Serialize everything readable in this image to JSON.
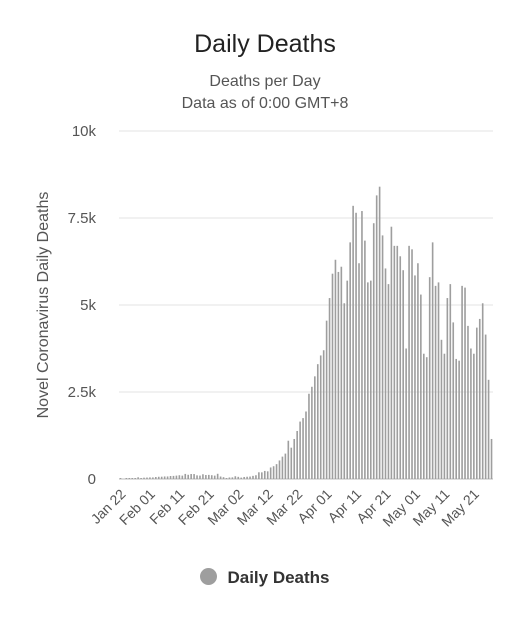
{
  "chart_data": {
    "type": "bar",
    "title": "Daily Deaths",
    "subtitle": [
      "Deaths per Day",
      "Data as of 0:00 GMT+8"
    ],
    "ylabel": "Novel Coronavirus Daily Deaths",
    "xlabel": "",
    "ylim": [
      0,
      10000
    ],
    "yticks": [
      0,
      2500,
      5000,
      7500,
      10000
    ],
    "ytick_labels": [
      "0",
      "2.5k",
      "5k",
      "7.5k",
      "10k"
    ],
    "xtick_labels": [
      "Jan 22",
      "Feb 01",
      "Feb 11",
      "Feb 21",
      "Mar 02",
      "Mar 12",
      "Mar 22",
      "Apr 01",
      "Apr 11",
      "Apr 21",
      "May 01",
      "May 11",
      "May 21"
    ],
    "start_date": "2020-01-22",
    "grid": true,
    "legend": "bottom",
    "color": "#9e9e9e",
    "series": [
      {
        "name": "Daily Deaths",
        "values": [
          17,
          0,
          8,
          16,
          14,
          26,
          49,
          2,
          38,
          42,
          46,
          45,
          57,
          64,
          66,
          73,
          73,
          86,
          89,
          97,
          108,
          97,
          146,
          121,
          143,
          142,
          105,
          98,
          136,
          114,
          118,
          109,
          97,
          150,
          71,
          52,
          29,
          44,
          47,
          79,
          62,
          40,
          58,
          65,
          70,
          90,
          108,
          193,
          191,
          232,
          220,
          331,
          367,
          427,
          533,
          643,
          730,
          1100,
          900,
          1150,
          1380,
          1650,
          1750,
          1940,
          2450,
          2650,
          2950,
          3300,
          3550,
          3700,
          4550,
          5200,
          5900,
          6300,
          5950,
          6100,
          5050,
          5700,
          6800,
          7850,
          7650,
          6200,
          7700,
          6850,
          5650,
          5700,
          7350,
          8150,
          8400,
          7000,
          6050,
          5600,
          7250,
          6700,
          6700,
          6400,
          6000,
          3750,
          6700,
          6600,
          5850,
          6200,
          5300,
          3600,
          3500,
          5800,
          6800,
          5550,
          5650,
          4000,
          3600,
          5200,
          5600,
          4500,
          3450,
          3400,
          5550,
          5500,
          4400,
          3750,
          3600,
          4350,
          4600,
          5050,
          4150,
          2850,
          1150
        ]
      }
    ]
  },
  "legend_label": "Daily Deaths"
}
